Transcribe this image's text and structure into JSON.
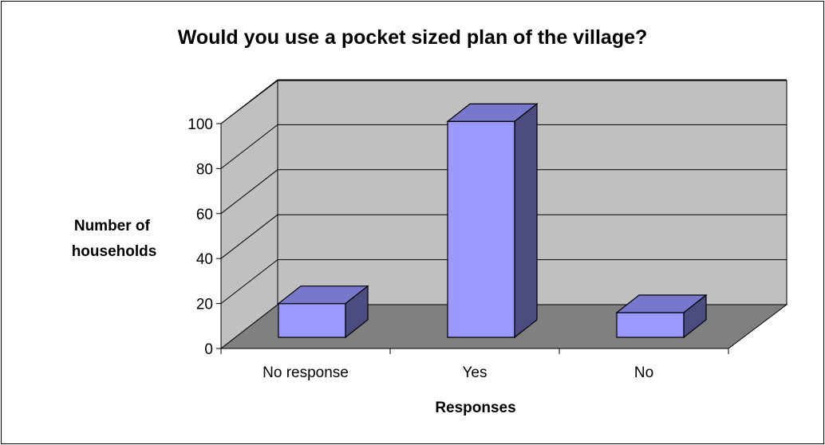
{
  "chart_data": {
    "type": "bar",
    "title": "Would you use a pocket sized plan of the village?",
    "xlabel": "Responses",
    "ylabel": [
      "Number of",
      "households"
    ],
    "categories": [
      "No response",
      "Yes",
      "No"
    ],
    "values": [
      15,
      96,
      11
    ],
    "ylim": [
      0,
      100
    ],
    "yticks": [
      "0",
      "20",
      "40",
      "60",
      "80",
      "100"
    ],
    "grid": true,
    "legend": "none",
    "colors": {
      "bar_front": "#9999ff",
      "bar_top": "#7777cc",
      "bar_side": "#4c4c80",
      "back_wall": "#c0c0c0",
      "floor": "#808080"
    }
  }
}
